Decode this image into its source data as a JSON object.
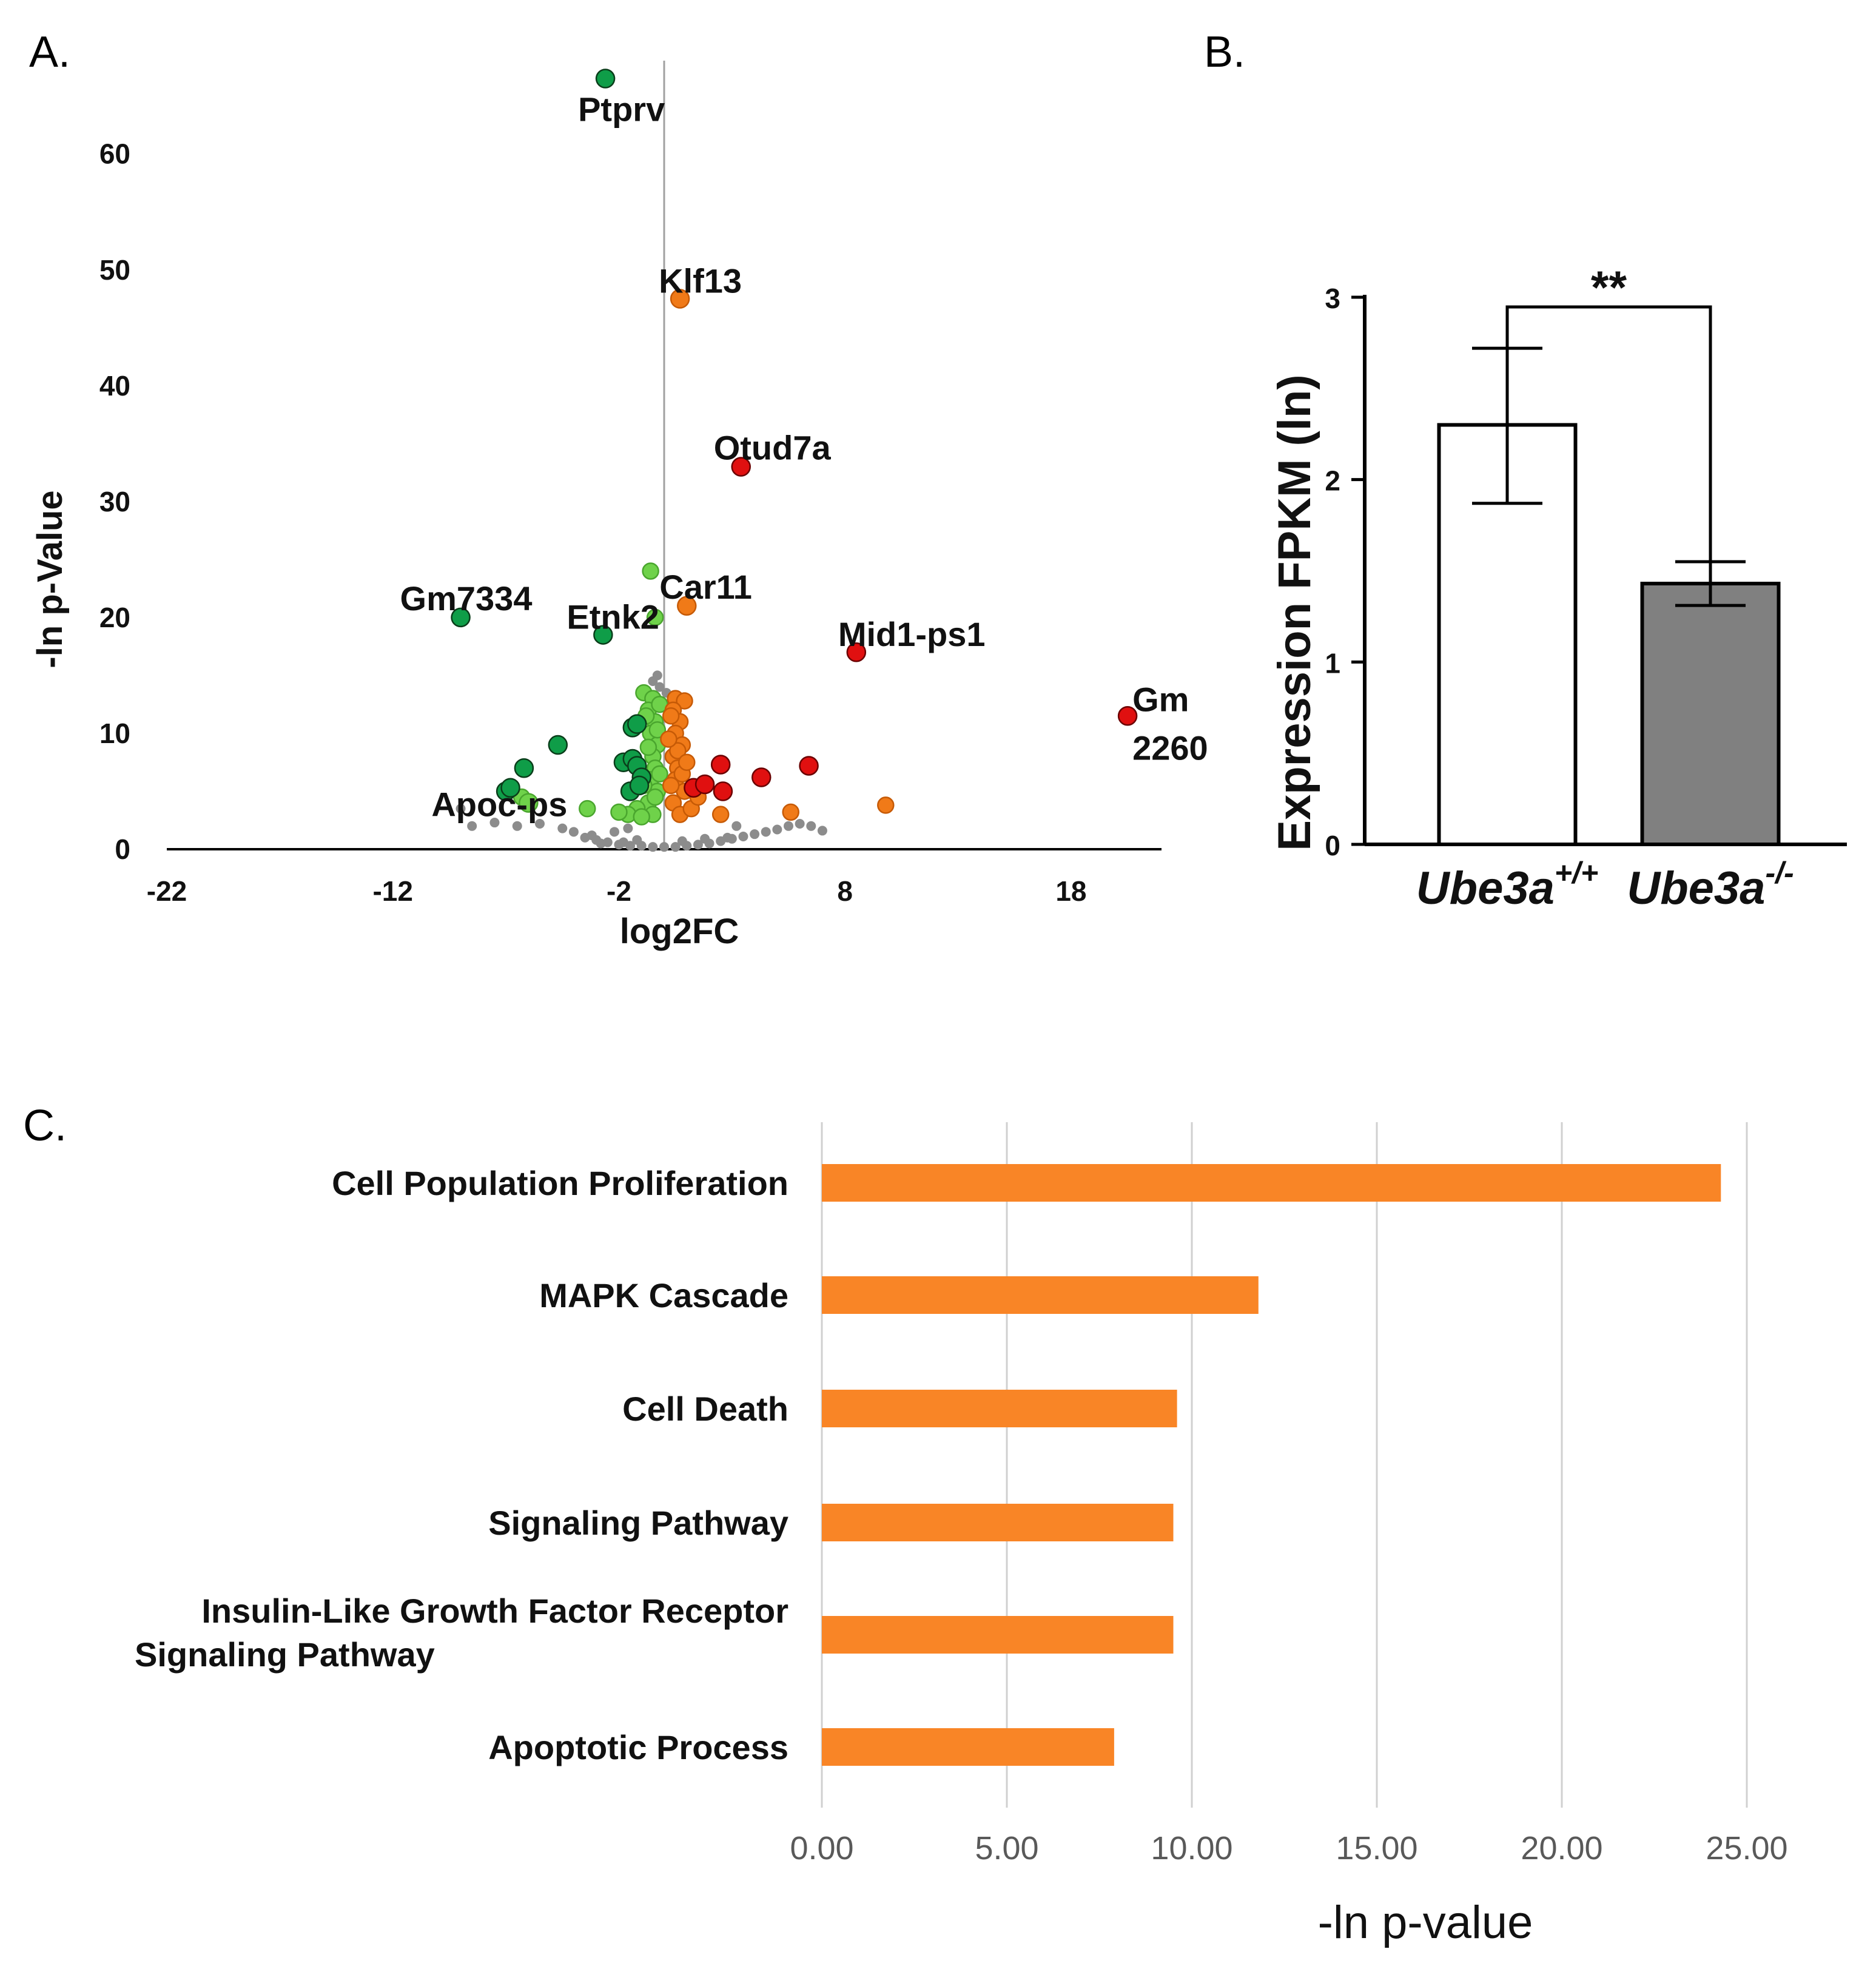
{
  "panels": {
    "a_label": "A.",
    "b_label": "B.",
    "c_label": "C."
  },
  "colors": {
    "dark_green": "#0f9d48",
    "light_green": "#6fd24a",
    "orange": "#f07a18",
    "red": "#e01010",
    "grey": "#8c8c8c",
    "bar_orange": "#f98526",
    "bar_grey": "#808080"
  },
  "chart_data": [
    {
      "id": "volcano",
      "type": "scatter",
      "title": "",
      "xlabel": "log2FC",
      "ylabel": "-ln p-Value",
      "xlim": [
        -22,
        22
      ],
      "ylim": [
        0,
        67
      ],
      "xticks": [
        -22,
        -12,
        -2,
        8,
        18
      ],
      "yticks": [
        0,
        10,
        20,
        30,
        40,
        50,
        60
      ],
      "labeled_genes": [
        {
          "name": "Ptprv",
          "x": -2.6,
          "y": 66.5,
          "group": "dark_green"
        },
        {
          "name": "Klf13",
          "x": 0.7,
          "y": 47.5,
          "group": "orange"
        },
        {
          "name": "Otud7a",
          "x": 3.4,
          "y": 33.0,
          "group": "red"
        },
        {
          "name": "Car11",
          "x": 1.0,
          "y": 21.0,
          "group": "orange"
        },
        {
          "name": "Gm7334",
          "x": -9.0,
          "y": 20.0,
          "group": "dark_green"
        },
        {
          "name": "Etnk2",
          "x": -2.7,
          "y": 18.5,
          "group": "dark_green"
        },
        {
          "name": "Mid1-ps1",
          "x": 8.5,
          "y": 17.0,
          "group": "red"
        },
        {
          "name": "Gm 2260",
          "x": 20.5,
          "y": 11.5,
          "group": "red"
        },
        {
          "name": "Apoc-ps",
          "x": -6.0,
          "y": 4.0,
          "group": "light_green"
        }
      ],
      "points": {
        "dark_green": [
          [
            -4.7,
            9.0
          ],
          [
            -6.2,
            7.0
          ],
          [
            -7.0,
            5.0
          ],
          [
            -1.4,
            10.5
          ],
          [
            -1.2,
            10.8
          ],
          [
            -1.8,
            7.5
          ],
          [
            -1.4,
            7.8
          ],
          [
            -1.2,
            7.2
          ],
          [
            -1.0,
            6.2
          ],
          [
            -1.5,
            5.0
          ],
          [
            -1.1,
            5.5
          ],
          [
            -6.8,
            5.3
          ]
        ],
        "light_green": [
          [
            -0.6,
            24.0
          ],
          [
            -0.4,
            20.0
          ],
          [
            -3.4,
            3.5
          ],
          [
            -6.3,
            4.5
          ],
          [
            -0.9,
            13.5
          ],
          [
            -0.5,
            13.0
          ],
          [
            -0.7,
            12.0
          ],
          [
            -0.4,
            11.0
          ],
          [
            -0.6,
            10.0
          ],
          [
            -0.3,
            9.0
          ],
          [
            -0.5,
            8.0
          ],
          [
            -0.4,
            7.0
          ],
          [
            -0.6,
            6.0
          ],
          [
            -0.3,
            5.0
          ],
          [
            -0.7,
            4.0
          ],
          [
            -0.5,
            3.0
          ],
          [
            -1.2,
            3.5
          ],
          [
            -1.6,
            3.0
          ],
          [
            -2.0,
            3.2
          ],
          [
            -0.2,
            12.5
          ],
          [
            -0.8,
            11.5
          ],
          [
            -0.3,
            10.3
          ],
          [
            -0.7,
            8.8
          ],
          [
            -0.2,
            6.5
          ],
          [
            -0.9,
            5.5
          ],
          [
            -0.4,
            4.5
          ],
          [
            -1.0,
            2.8
          ]
        ],
        "orange": [
          [
            0.5,
            13.0
          ],
          [
            0.9,
            12.8
          ],
          [
            0.4,
            12.0
          ],
          [
            0.7,
            11.0
          ],
          [
            0.5,
            10.0
          ],
          [
            0.8,
            9.0
          ],
          [
            0.4,
            8.0
          ],
          [
            0.6,
            7.0
          ],
          [
            0.5,
            6.0
          ],
          [
            0.9,
            5.0
          ],
          [
            0.4,
            4.0
          ],
          [
            0.7,
            3.0
          ],
          [
            1.2,
            3.5
          ],
          [
            1.5,
            4.5
          ],
          [
            0.3,
            11.5
          ],
          [
            0.6,
            8.5
          ],
          [
            0.8,
            6.5
          ],
          [
            0.3,
            5.5
          ],
          [
            1.0,
            7.5
          ],
          [
            2.5,
            3.0
          ],
          [
            5.6,
            3.2
          ],
          [
            9.8,
            3.8
          ],
          [
            0.2,
            9.5
          ]
        ],
        "red": [
          [
            2.5,
            7.3
          ],
          [
            4.3,
            6.2
          ],
          [
            6.4,
            7.2
          ],
          [
            1.3,
            5.3
          ],
          [
            1.8,
            5.6
          ],
          [
            2.6,
            5.0
          ]
        ],
        "grey": [
          [
            -0.3,
            15.0
          ],
          [
            -0.2,
            14.0
          ],
          [
            0.1,
            13.5
          ],
          [
            -0.5,
            14.5
          ],
          [
            -9.0,
            3.5
          ],
          [
            -8.5,
            2.0
          ],
          [
            -7.5,
            2.3
          ],
          [
            -6.5,
            2.0
          ],
          [
            -5.5,
            2.2
          ],
          [
            -4.5,
            1.8
          ],
          [
            -3.5,
            1.0
          ],
          [
            -3.0,
            0.8
          ],
          [
            -2.5,
            0.6
          ],
          [
            -2.0,
            0.4
          ],
          [
            -1.5,
            0.3
          ],
          [
            -1.0,
            0.3
          ],
          [
            -0.5,
            0.2
          ],
          [
            0.0,
            0.2
          ],
          [
            0.5,
            0.2
          ],
          [
            1.0,
            0.3
          ],
          [
            1.5,
            0.4
          ],
          [
            2.0,
            0.5
          ],
          [
            2.5,
            0.7
          ],
          [
            3.0,
            0.9
          ],
          [
            3.5,
            1.1
          ],
          [
            4.0,
            1.3
          ],
          [
            4.5,
            1.5
          ],
          [
            5.0,
            1.7
          ],
          [
            5.5,
            2.0
          ],
          [
            6.0,
            2.2
          ],
          [
            6.5,
            2.0
          ],
          [
            7.0,
            1.6
          ],
          [
            -4.0,
            1.5
          ],
          [
            -3.2,
            1.2
          ],
          [
            -2.8,
            0.5
          ],
          [
            -1.8,
            0.6
          ],
          [
            -1.2,
            0.8
          ],
          [
            0.8,
            0.7
          ],
          [
            1.8,
            0.9
          ],
          [
            2.8,
            1.0
          ],
          [
            -2.2,
            1.5
          ],
          [
            -1.6,
            1.8
          ],
          [
            3.2,
            2.0
          ]
        ]
      }
    },
    {
      "id": "expression",
      "type": "bar",
      "categories": [
        "Ube3a+/+",
        "Ube3a-/-"
      ],
      "category_base": [
        "Ube3a",
        "Ube3a"
      ],
      "category_sup": [
        "+/+",
        "-/-"
      ],
      "values": [
        2.3,
        1.43
      ],
      "error_bars": [
        [
          1.87,
          2.72
        ],
        [
          1.31,
          1.55
        ]
      ],
      "colors": [
        "#ffffff",
        "#808080"
      ],
      "ylabel": "Expression FPKM (ln)",
      "ylim": [
        0,
        3
      ],
      "yticks": [
        0,
        1,
        2,
        3
      ],
      "significance": "**"
    },
    {
      "id": "enrichment",
      "type": "bar",
      "orientation": "horizontal",
      "categories": [
        "Cell Population Proliferation",
        "MAPK Cascade",
        "Cell Death",
        "Signaling Pathway",
        "Insulin-Like Growth Factor Receptor|Signaling Pathway",
        "Apoptotic Process"
      ],
      "values": [
        24.3,
        11.8,
        9.6,
        9.5,
        9.5,
        7.9
      ],
      "xlabel": "-ln p-value",
      "xlim": [
        0,
        25
      ],
      "xticks": [
        "0.00",
        "5.00",
        "10.00",
        "15.00",
        "20.00",
        "25.00"
      ]
    }
  ]
}
